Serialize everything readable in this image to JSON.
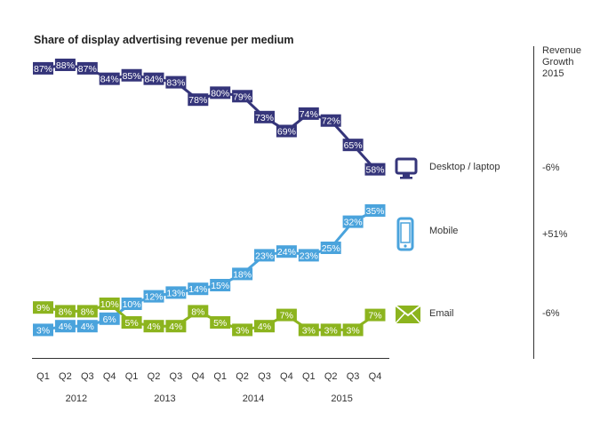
{
  "title": "Share of display advertising revenue per medium",
  "growth": {
    "title": "Revenue Growth 2015",
    "title_lines": [
      "Revenue",
      "Growth",
      "2015"
    ]
  },
  "colors": {
    "desktop": "#35357a",
    "mobile": "#4aa3dc",
    "email": "#8cb41e",
    "axis": "#333333"
  },
  "icons": {
    "desktop": "monitor-icon",
    "mobile": "smartphone-icon",
    "email": "envelope-icon"
  },
  "chart_data": {
    "type": "line",
    "title": "Share of display advertising revenue per medium",
    "xlabel": "",
    "ylabel": "",
    "quarters": [
      "Q1",
      "Q2",
      "Q3",
      "Q4",
      "Q1",
      "Q2",
      "Q3",
      "Q4",
      "Q1",
      "Q2",
      "Q3",
      "Q4",
      "Q1",
      "Q2",
      "Q3",
      "Q4"
    ],
    "years": [
      "2012",
      "2013",
      "2014",
      "2015"
    ],
    "ylim": [
      0,
      90
    ],
    "grid": false,
    "legend": "right",
    "series": [
      {
        "key": "desktop",
        "name": "Desktop / laptop",
        "values": [
          87,
          88,
          87,
          84,
          85,
          84,
          83,
          78,
          80,
          79,
          73,
          69,
          74,
          72,
          65,
          58
        ],
        "labels": [
          "87%",
          "88%",
          "87%",
          "84%",
          "85%",
          "84%",
          "83%",
          "78%",
          "80%",
          "79%",
          "73%",
          "69%",
          "74%",
          "72%",
          "65%",
          "58%"
        ],
        "revenue_growth_2015": "-6%"
      },
      {
        "key": "mobile",
        "name": "Mobile",
        "values": [
          3,
          4,
          4,
          6,
          10,
          12,
          13,
          14,
          15,
          18,
          23,
          24,
          23,
          25,
          32,
          35
        ],
        "labels": [
          "3%",
          "4%",
          "4%",
          "6%",
          "10%",
          "12%",
          "13%",
          "14%",
          "15%",
          "18%",
          "23%",
          "24%",
          "23%",
          "25%",
          "32%",
          "35%"
        ],
        "revenue_growth_2015": "+51%"
      },
      {
        "key": "email",
        "name": "Email",
        "values": [
          9,
          8,
          8,
          10,
          5,
          4,
          4,
          8,
          5,
          3,
          4,
          7,
          3,
          3,
          3,
          7
        ],
        "labels": [
          "9%",
          "8%",
          "8%",
          "10%",
          "5%",
          "4%",
          "4%",
          "8%",
          "5%",
          "3%",
          "4%",
          "7%",
          "3%",
          "3%",
          "3%",
          "7%"
        ],
        "revenue_growth_2015": "-6%"
      }
    ]
  }
}
